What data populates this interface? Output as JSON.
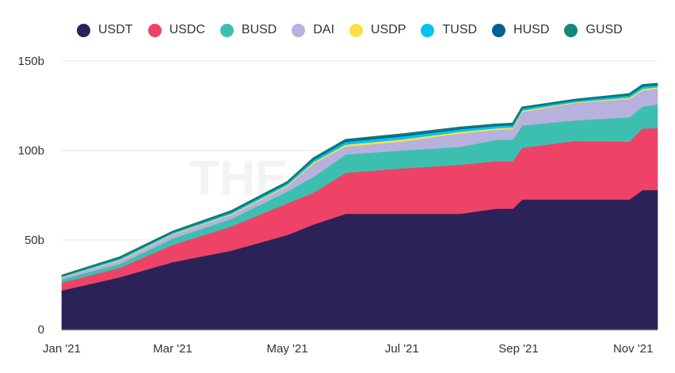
{
  "chart_data": {
    "type": "area",
    "stacked": true,
    "title": "",
    "xlabel": "",
    "ylabel": "",
    "watermark": "THE BLOCK",
    "x": [
      "2021-01-01",
      "2021-02-01",
      "2021-03-01",
      "2021-04-01",
      "2021-05-01",
      "2021-05-15",
      "2021-06-01",
      "2021-07-01",
      "2021-08-01",
      "2021-08-20",
      "2021-08-29",
      "2021-09-03",
      "2021-10-01",
      "2021-10-30",
      "2021-11-06",
      "2021-11-14"
    ],
    "xlim": [
      "2021-01-01",
      "2021-11-14"
    ],
    "x_ticks": [
      {
        "date": "2021-01-01",
        "label": "Jan '21"
      },
      {
        "date": "2021-03-01",
        "label": "Mar '21"
      },
      {
        "date": "2021-05-01",
        "label": "May '21"
      },
      {
        "date": "2021-07-01",
        "label": "Jul '21"
      },
      {
        "date": "2021-09-01",
        "label": "Sep '21"
      },
      {
        "date": "2021-11-01",
        "label": "Nov '21"
      }
    ],
    "ylim": [
      0,
      150
    ],
    "y_ticks": [
      {
        "value": 0,
        "label": "0"
      },
      {
        "value": 50,
        "label": "50b"
      },
      {
        "value": 100,
        "label": "100b"
      },
      {
        "value": 150,
        "label": "150b"
      }
    ],
    "grid": true,
    "legend_position": "top",
    "units": "billion USD",
    "series": [
      {
        "name": "USDT",
        "color": "#2b2358",
        "values": [
          21.8,
          29.2,
          37.6,
          44,
          52.8,
          58.7,
          64.6,
          64.6,
          64.6,
          67.5,
          67.5,
          72.6,
          72.6,
          72.6,
          77.9,
          77.9
        ]
      },
      {
        "name": "USDC",
        "color": "#ef4267",
        "values": [
          4.3,
          5.3,
          9.7,
          13.5,
          17.7,
          17.7,
          22.9,
          25.4,
          27.4,
          26.5,
          26.5,
          28.9,
          32.7,
          32.4,
          34.4,
          34.6
        ]
      },
      {
        "name": "BUSD",
        "color": "#3dbfb0",
        "values": [
          1.9,
          2.2,
          3.5,
          4.2,
          6.6,
          8.9,
          10.3,
          10,
          10,
          12,
          12,
          12.5,
          11.5,
          13.6,
          12.2,
          13.3
        ]
      },
      {
        "name": "DAI",
        "color": "#b7b1de",
        "values": [
          1.2,
          1.8,
          2.2,
          2.2,
          2.9,
          7.3,
          4.4,
          5,
          7.5,
          5.5,
          6,
          7.5,
          9.7,
          10.2,
          9,
          8.8
        ]
      },
      {
        "name": "USDP",
        "color": "#fade4b",
        "values": [
          0.2,
          0.5,
          0.5,
          0.6,
          0.7,
          0.9,
          1.1,
          1.2,
          1.0,
          0.9,
          0.9,
          0.8,
          0.5,
          0.8,
          0.9,
          0.8
        ]
      },
      {
        "name": "TUSD",
        "color": "#00c2ee",
        "values": [
          0.4,
          0.8,
          0.7,
          0.9,
          1.0,
          1.3,
          1.6,
          1.7,
          1.4,
          1.3,
          1.3,
          1.1,
          0.8,
          1.2,
          1.3,
          1.1
        ]
      },
      {
        "name": "HUSD",
        "color": "#005e99",
        "values": [
          0.1,
          0.3,
          0.3,
          0.4,
          0.4,
          0.5,
          0.6,
          0.7,
          0.6,
          0.5,
          0.5,
          0.4,
          0.3,
          0.5,
          0.5,
          0.5
        ]
      },
      {
        "name": "GUSD",
        "color": "#14877a",
        "values": [
          0.1,
          0.2,
          0.1,
          0.2,
          0.2,
          0.3,
          0.4,
          0.4,
          0.3,
          0.3,
          0.3,
          0.2,
          0.2,
          0.2,
          0.3,
          0.2
        ]
      }
    ]
  }
}
